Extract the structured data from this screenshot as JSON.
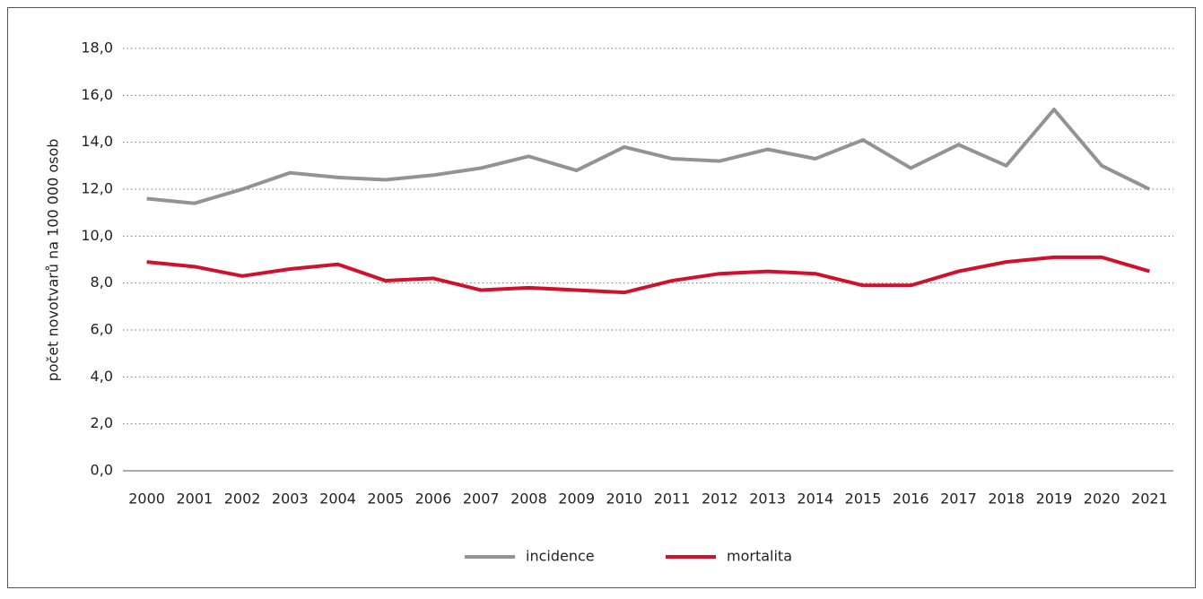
{
  "chart_data": {
    "type": "line",
    "y_label": "počet novotvarů na 100 000 osob",
    "categories": [
      "2000",
      "2001",
      "2002",
      "2003",
      "2004",
      "2005",
      "2006",
      "2007",
      "2008",
      "2009",
      "2010",
      "2011",
      "2012",
      "2013",
      "2014",
      "2015",
      "2016",
      "2017",
      "2018",
      "2019",
      "2020",
      "2021"
    ],
    "series": [
      {
        "name": "incidence",
        "color": "#939393",
        "values": [
          11.6,
          11.4,
          12.0,
          12.7,
          12.5,
          12.4,
          12.6,
          12.9,
          13.4,
          12.8,
          13.8,
          13.3,
          13.2,
          13.7,
          13.3,
          14.1,
          12.9,
          13.9,
          13.0,
          15.4,
          13.0,
          12.0
        ]
      },
      {
        "name": "mortalita",
        "color": "#d0112b",
        "values": [
          8.9,
          8.7,
          8.3,
          8.6,
          8.8,
          8.1,
          8.2,
          7.7,
          7.8,
          7.7,
          7.6,
          8.1,
          8.4,
          8.5,
          8.4,
          7.9,
          7.9,
          8.5,
          8.9,
          9.1,
          9.1,
          8.5
        ]
      }
    ],
    "ylim": [
      0,
      18
    ],
    "yticks": [
      {
        "value": 0,
        "label": "0,0"
      },
      {
        "value": 2,
        "label": "2,0"
      },
      {
        "value": 4,
        "label": "4,0"
      },
      {
        "value": 6,
        "label": "6,0"
      },
      {
        "value": 8,
        "label": "8,0"
      },
      {
        "value": 10,
        "label": "10,0"
      },
      {
        "value": 12,
        "label": "12,0"
      },
      {
        "value": 14,
        "label": "14,0"
      },
      {
        "value": 16,
        "label": "16,0"
      },
      {
        "value": 18,
        "label": "18,0"
      }
    ],
    "grid": true,
    "legend": "bottom"
  }
}
